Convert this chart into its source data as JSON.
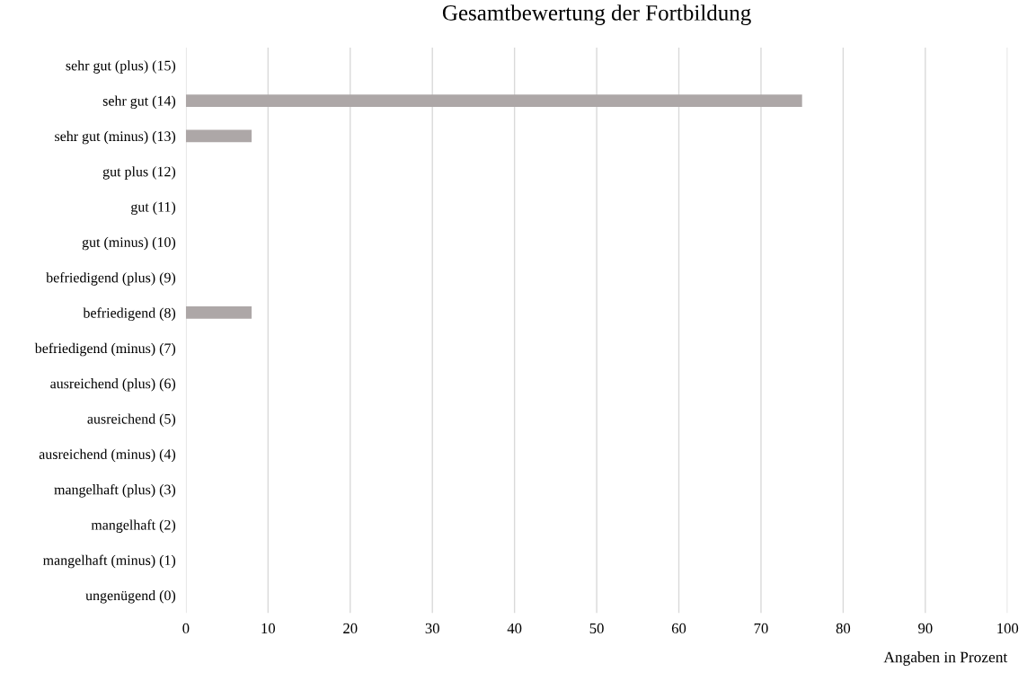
{
  "chart_data": {
    "type": "bar",
    "orientation": "horizontal",
    "title": "Gesamtbewertung der Fortbildung",
    "xlabel": "Angaben in Prozent",
    "categories": [
      "sehr gut (plus) (15)",
      "sehr gut (14)",
      "sehr gut (minus) (13)",
      "gut plus (12)",
      "gut (11)",
      "gut (minus) (10)",
      "befriedigend (plus) (9)",
      "befriedigend (8)",
      "befriedigend (minus) (7)",
      "ausreichend (plus) (6)",
      "ausreichend (5)",
      "ausreichend (minus) (4)",
      "mangelhaft (plus) (3)",
      "mangelhaft (2)",
      "mangelhaft (minus) (1)",
      "ungenügend (0)"
    ],
    "values": [
      0,
      75,
      8,
      0,
      0,
      0,
      0,
      8,
      0,
      0,
      0,
      0,
      0,
      0,
      0,
      0
    ],
    "color": "#ada7a7",
    "xlim": [
      0,
      100
    ],
    "xticks": [
      0,
      10,
      20,
      30,
      40,
      50,
      60,
      70,
      80,
      90,
      100
    ],
    "grid": "x"
  }
}
